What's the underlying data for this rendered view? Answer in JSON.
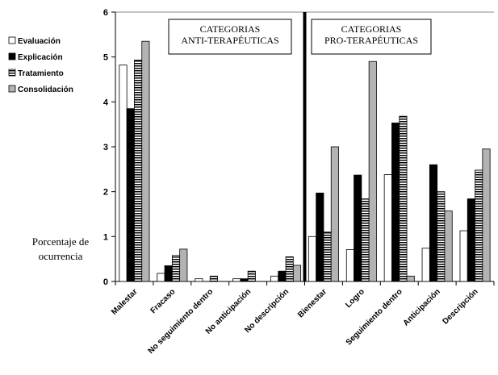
{
  "chart_data": {
    "type": "bar",
    "ylabel": [
      "Porcentaje de",
      "ocurrencia"
    ],
    "ylim": [
      0,
      6
    ],
    "yticks": [
      "0",
      "1",
      "2",
      "3",
      "4",
      "5",
      "6"
    ],
    "categories": [
      "Malestar",
      "Fracaso",
      "No seguimiento dentro",
      "No anticipación",
      "No descripción",
      "Bienestar",
      "Logro",
      "Seguimiento dentro",
      "Anticipación",
      "Descripción"
    ],
    "series": [
      {
        "name": "Evaluación",
        "pattern": "white",
        "values": [
          4.82,
          0.18,
          0.06,
          0.06,
          0.12,
          1.0,
          0.71,
          2.38,
          0.74,
          1.13
        ]
      },
      {
        "name": "Explicación",
        "pattern": "black",
        "values": [
          3.85,
          0.35,
          0.0,
          0.06,
          0.23,
          1.97,
          2.37,
          3.53,
          2.6,
          1.84
        ]
      },
      {
        "name": "Tratamiento",
        "pattern": "stripes",
        "values": [
          4.93,
          0.58,
          0.12,
          0.23,
          0.55,
          1.1,
          1.84,
          3.68,
          2.0,
          2.48
        ]
      },
      {
        "name": "Consolidación",
        "pattern": "gray",
        "values": [
          5.35,
          0.72,
          0.0,
          0.0,
          0.36,
          3.0,
          4.9,
          0.12,
          1.57,
          2.95
        ]
      }
    ],
    "groups": [
      {
        "label": [
          "CATEGORIAS",
          "ANTI-TERAPÉUTICAS"
        ]
      },
      {
        "label": [
          "CATEGORIAS",
          "PRO-TERAPÉUTICAS"
        ]
      }
    ],
    "legend_position": "top-left",
    "colors": {
      "white": "#ffffff",
      "black": "#000000",
      "gray": "#b3b3b3",
      "stroke": "#000000"
    }
  }
}
